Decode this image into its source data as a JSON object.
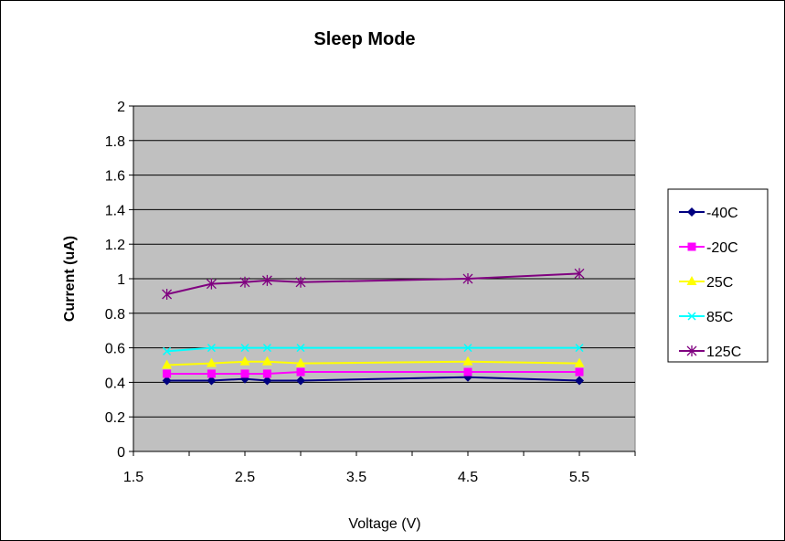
{
  "chart_data": {
    "type": "line",
    "title": "Sleep Mode",
    "xlabel": "Voltage (V)",
    "ylabel": "Current (uA)",
    "xlim": [
      1.5,
      6.0
    ],
    "ylim": [
      0,
      2
    ],
    "x_ticks": [
      "1.5",
      "2.5",
      "3.5",
      "4.5",
      "5.5"
    ],
    "x_tick_values": [
      1.5,
      2.5,
      3.5,
      4.5,
      5.5
    ],
    "y_ticks": [
      "0",
      "0.2",
      "0.4",
      "0.6",
      "0.8",
      "1",
      "1.2",
      "1.4",
      "1.6",
      "1.8",
      "2"
    ],
    "y_tick_values": [
      0,
      0.2,
      0.4,
      0.6,
      0.8,
      1.0,
      1.2,
      1.4,
      1.6,
      1.8,
      2.0
    ],
    "grid": "horizontal",
    "plot_background": "#c0c0c0",
    "legend_position": "right",
    "x": [
      1.8,
      2.2,
      2.5,
      2.7,
      3.0,
      4.5,
      5.5
    ],
    "series": [
      {
        "name": "-40C",
        "color": "#000080",
        "marker": "diamond",
        "values": [
          0.41,
          0.41,
          0.42,
          0.41,
          0.41,
          0.43,
          0.41
        ]
      },
      {
        "name": "-20C",
        "color": "#ff00ff",
        "marker": "square",
        "values": [
          0.45,
          0.45,
          0.45,
          0.45,
          0.46,
          0.46,
          0.46
        ]
      },
      {
        "name": "25C",
        "color": "#ffff00",
        "marker": "triangle",
        "values": [
          0.5,
          0.51,
          0.52,
          0.52,
          0.51,
          0.52,
          0.51
        ]
      },
      {
        "name": "85C",
        "color": "#00ffff",
        "marker": "x",
        "values": [
          0.58,
          0.6,
          0.6,
          0.6,
          0.6,
          0.6,
          0.6
        ]
      },
      {
        "name": "125C",
        "color": "#800080",
        "marker": "star",
        "values": [
          0.91,
          0.97,
          0.98,
          0.99,
          0.98,
          1.0,
          1.03
        ]
      }
    ]
  }
}
